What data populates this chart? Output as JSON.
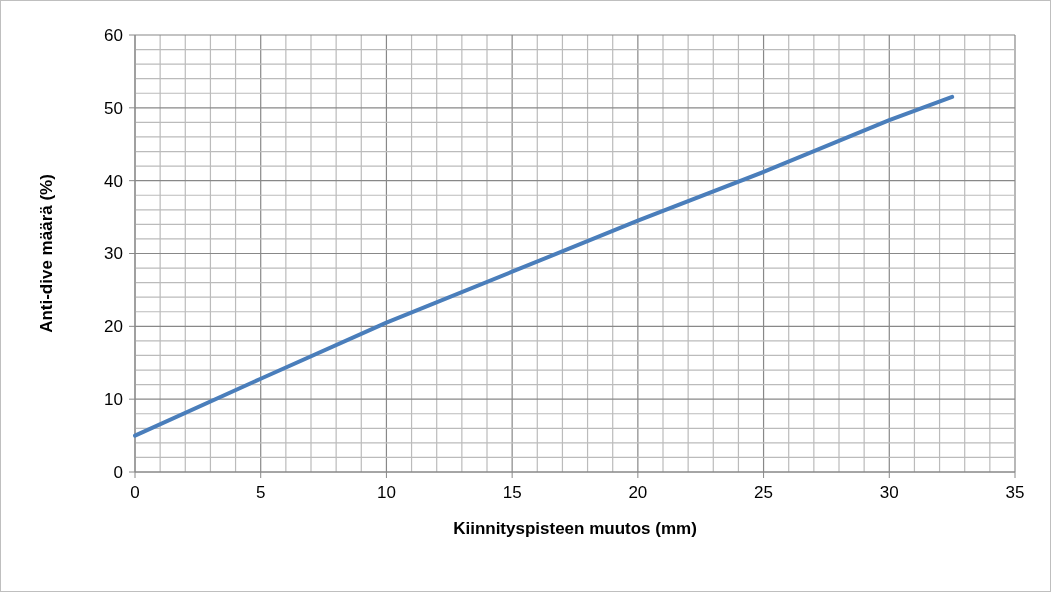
{
  "chart_data": {
    "type": "line",
    "xlabel": "Kiinnityspisteen muutos (mm)",
    "ylabel": "Anti-dive määrä (%)",
    "x": [
      0,
      5,
      10,
      15,
      20,
      25,
      30,
      32.5
    ],
    "series": [
      {
        "color": "#4a7ebb",
        "values": [
          5,
          12.8,
          20.5,
          27.5,
          34.5,
          41.2,
          48.3,
          51.5
        ]
      }
    ],
    "xlim": [
      0,
      35
    ],
    "ylim": [
      0,
      60
    ],
    "xticks": [
      0,
      {
        "value": 1,
        "label": null
      },
      {
        "value": 2,
        "label": null
      },
      {
        "value": 3,
        "label": null
      },
      {
        "value": 4,
        "label": null
      },
      5,
      {
        "value": 6,
        "label": null
      },
      {
        "value": 7,
        "label": null
      },
      {
        "value": 8,
        "label": null
      },
      {
        "value": 9,
        "label": null
      },
      10,
      {
        "value": 11,
        "label": null
      },
      {
        "value": 12,
        "label": null
      },
      {
        "value": 13,
        "label": null
      },
      {
        "value": 14,
        "label": null
      },
      15,
      {
        "value": 16,
        "label": null
      },
      {
        "value": 17,
        "label": null
      },
      {
        "value": 18,
        "label": null
      },
      {
        "value": 19,
        "label": null
      },
      20,
      {
        "value": 21,
        "label": null
      },
      {
        "value": 22,
        "label": null
      },
      {
        "value": 23,
        "label": null
      },
      {
        "value": 24,
        "label": null
      },
      25,
      {
        "value": 26,
        "label": null
      },
      {
        "value": 27,
        "label": null
      },
      {
        "value": 28,
        "label": null
      },
      {
        "value": 29,
        "label": null
      },
      30,
      {
        "value": 31,
        "label": null
      },
      {
        "value": 32,
        "label": null
      },
      {
        "value": 33,
        "label": null
      },
      {
        "value": 34,
        "label": null
      },
      35
    ],
    "yticks": [
      0,
      {
        "value": 2,
        "label": null
      },
      {
        "value": 4,
        "label": null
      },
      {
        "value": 6,
        "label": null
      },
      {
        "value": 8,
        "label": null
      },
      10,
      {
        "value": 12,
        "label": null
      },
      {
        "value": 14,
        "label": null
      },
      {
        "value": 16,
        "label": null
      },
      {
        "value": 18,
        "label": null
      },
      20,
      {
        "value": 22,
        "label": null
      },
      {
        "value": 24,
        "label": null
      },
      {
        "value": 26,
        "label": null
      },
      {
        "value": 28,
        "label": null
      },
      30,
      {
        "value": 32,
        "label": null
      },
      {
        "value": 34,
        "label": null
      },
      {
        "value": 36,
        "label": null
      },
      {
        "value": 38,
        "label": null
      },
      40,
      {
        "value": 42,
        "label": null
      },
      {
        "value": 44,
        "label": null
      },
      {
        "value": 46,
        "label": null
      },
      {
        "value": 48,
        "label": null
      },
      50,
      {
        "value": 52,
        "label": null
      },
      {
        "value": 54,
        "label": null
      },
      {
        "value": 56,
        "label": null
      },
      {
        "value": 58,
        "label": null
      },
      60
    ],
    "grid": true,
    "marker": "none",
    "line_style": "solid"
  }
}
